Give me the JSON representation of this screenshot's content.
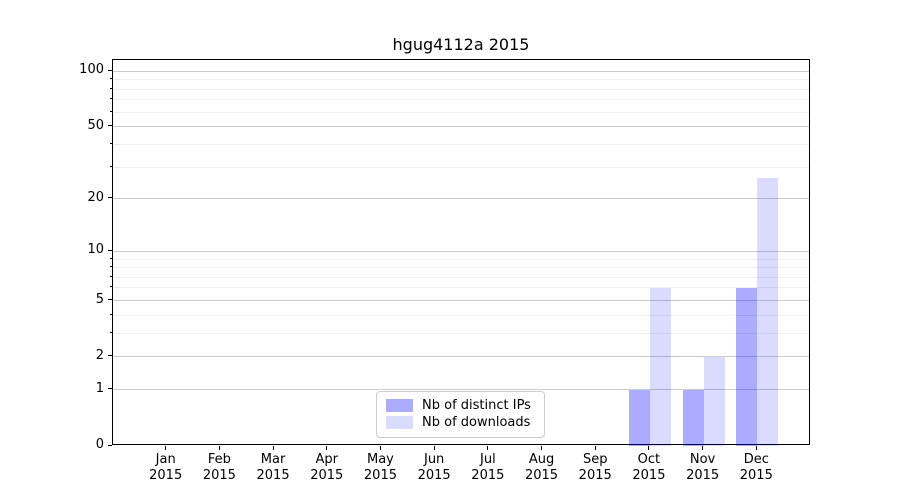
{
  "title": "hgug4112a 2015",
  "chart_data": {
    "type": "bar",
    "categories": [
      "Jan",
      "Feb",
      "Mar",
      "Apr",
      "May",
      "Jun",
      "Jul",
      "Aug",
      "Sep",
      "Oct",
      "Nov",
      "Dec"
    ],
    "category_year": "2015",
    "series": [
      {
        "name": "Nb of distinct IPs",
        "color": "rgba(0,0,255,0.33)",
        "values": [
          0,
          0,
          0,
          0,
          0,
          0,
          0,
          0,
          0,
          1,
          1,
          6
        ]
      },
      {
        "name": "Nb of downloads",
        "color": "rgba(0,0,255,0.14)",
        "values": [
          0,
          0,
          0,
          0,
          0,
          0,
          0,
          0,
          0,
          6,
          2,
          26
        ]
      }
    ],
    "yscale": "log1p",
    "ylim": [
      0,
      115
    ],
    "yticks": [
      0,
      1,
      2,
      5,
      10,
      20,
      50,
      100
    ],
    "minor_gridlines": [
      3,
      4,
      6,
      7,
      8,
      9,
      30,
      40,
      60,
      70,
      80,
      90
    ],
    "grid": true,
    "legend_position": "lower center",
    "colors": {
      "distinct_ips_rendered": "#aaaaf9",
      "downloads_rendered": "#dbdbfa",
      "major_grid": "#cccccc",
      "minor_grid": "#efefef"
    }
  }
}
